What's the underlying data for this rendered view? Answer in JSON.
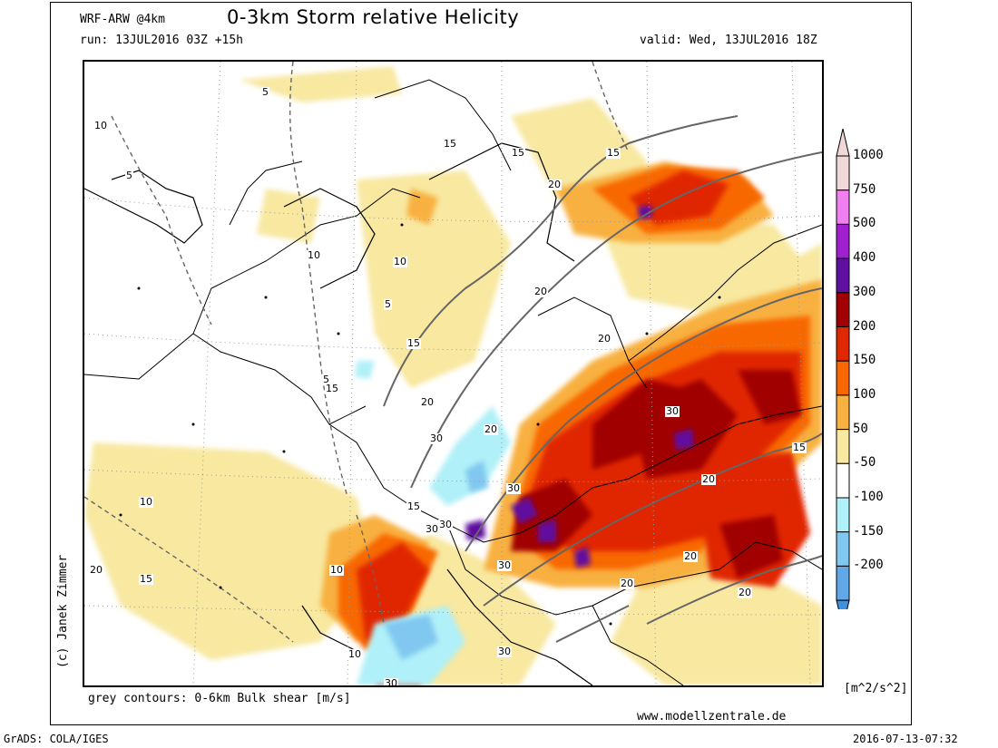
{
  "header": {
    "model": "WRF-ARW @4km",
    "title": "0-3km Storm relative Helicity",
    "run": "run: 13JUL2016 03Z +15h",
    "valid": "valid: Wed, 13JUL2016 18Z"
  },
  "footer": {
    "author": "(c) Janek Zimmer",
    "contour_note": "grey contours: 0-6km Bulk shear [m/s]",
    "website": "www.modellzentrale.de",
    "grads": "GrADS: COLA/IGES",
    "timestamp": "2016-07-13-07:32"
  },
  "legend": {
    "units": "[m^2/s^2]",
    "levels": [
      {
        "label": "1000",
        "color": "#f0d8d8"
      },
      {
        "label": "750",
        "color": "#f080f0"
      },
      {
        "label": "500",
        "color": "#a020d0"
      },
      {
        "label": "400",
        "color": "#6010a0"
      },
      {
        "label": "300",
        "color": "#a00000"
      },
      {
        "label": "200",
        "color": "#e02800"
      },
      {
        "label": "150",
        "color": "#f86800"
      },
      {
        "label": "100",
        "color": "#f8b040"
      },
      {
        "label": "50",
        "color": "#f8e8a0"
      },
      {
        "label": "-50",
        "color": "#ffffff"
      },
      {
        "label": "-100",
        "color": "#b0f0f8"
      },
      {
        "label": "-150",
        "color": "#80c8f0"
      },
      {
        "label": "-200",
        "color": "#60a8e8"
      }
    ],
    "bottom_color": "#4090e0",
    "top_color": "#f0d8d8"
  },
  "map": {
    "contour_labels": [
      "5",
      "5",
      "5",
      "5",
      "10",
      "10",
      "10",
      "10",
      "10",
      "10",
      "15",
      "15",
      "15",
      "15",
      "15",
      "15",
      "15",
      "15",
      "20",
      "20",
      "20",
      "20",
      "20",
      "20",
      "20",
      "20",
      "20",
      "20",
      "30",
      "30",
      "30",
      "30",
      "30",
      "30",
      "30",
      "30"
    ]
  }
}
